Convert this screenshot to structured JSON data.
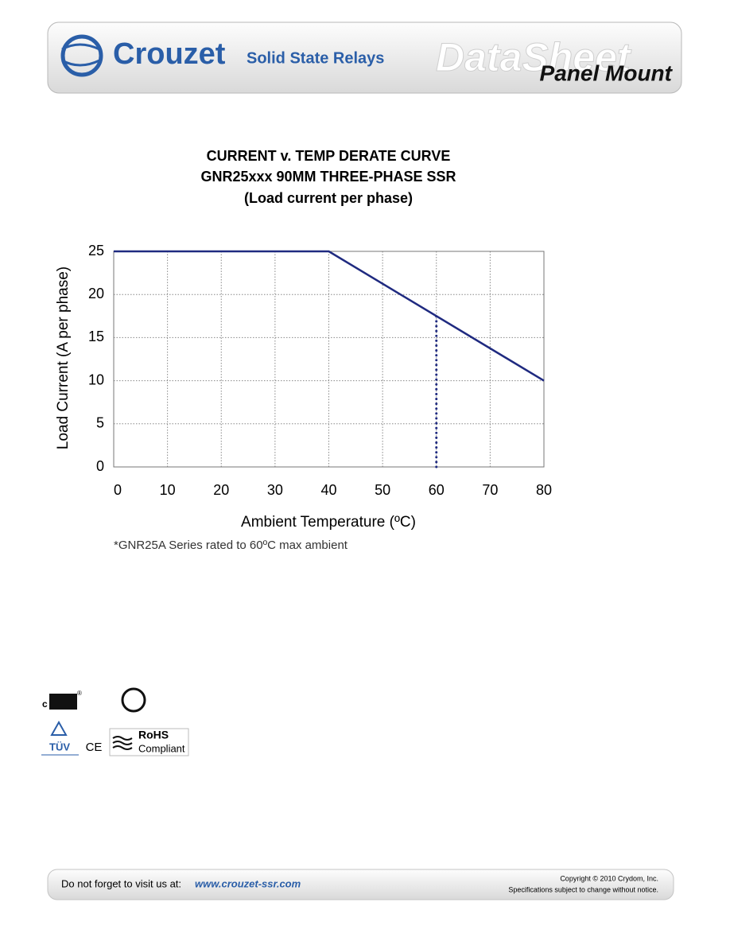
{
  "header": {
    "brand": "Crouzet",
    "product": "Solid State Relays",
    "banner": "DataSheet",
    "category": "Panel Mount"
  },
  "chart_data": {
    "type": "line",
    "title": "CURRENT v. TEMP DERATE CURVE",
    "subtitle": [
      "GNR25xxx 90MM THREE-PHASE SSR",
      "(Load current per phase)"
    ],
    "x_label": "Ambient Temperature (ºC)",
    "y_label": "Load Current (A per phase)",
    "annotation": "*GNR25A Series rated to 60ºC max ambient",
    "series": [
      {
        "x": [
          0,
          40,
          80
        ],
        "values": [
          25,
          25,
          10
        ],
        "color": "#1f2a80",
        "style": "solid"
      },
      {
        "x": [
          60,
          60
        ],
        "values": [
          0,
          17.5
        ],
        "color": "#1f2a80",
        "style": "dotted"
      }
    ],
    "xlim": [
      0,
      80
    ],
    "xticks": [
      0,
      10,
      20,
      30,
      40,
      50,
      60,
      70,
      80
    ],
    "ylim": [
      0,
      25
    ],
    "yticks": [
      0,
      5,
      10,
      15,
      20,
      25
    ],
    "grid": true
  },
  "certifications": {
    "ul_prefix": "c",
    "ul_mark": "®",
    "tuv": "TÜV",
    "ce": "CE",
    "rohs": "RoHS",
    "rohs_sub": "Compliant"
  },
  "footer": {
    "visit": "Do not forget to visit us at:",
    "url": "www.crouzet-ssr.com",
    "copyright": "Copyright © 2010 Crydom, Inc.",
    "notice": "Specifications subject to change without notice."
  }
}
